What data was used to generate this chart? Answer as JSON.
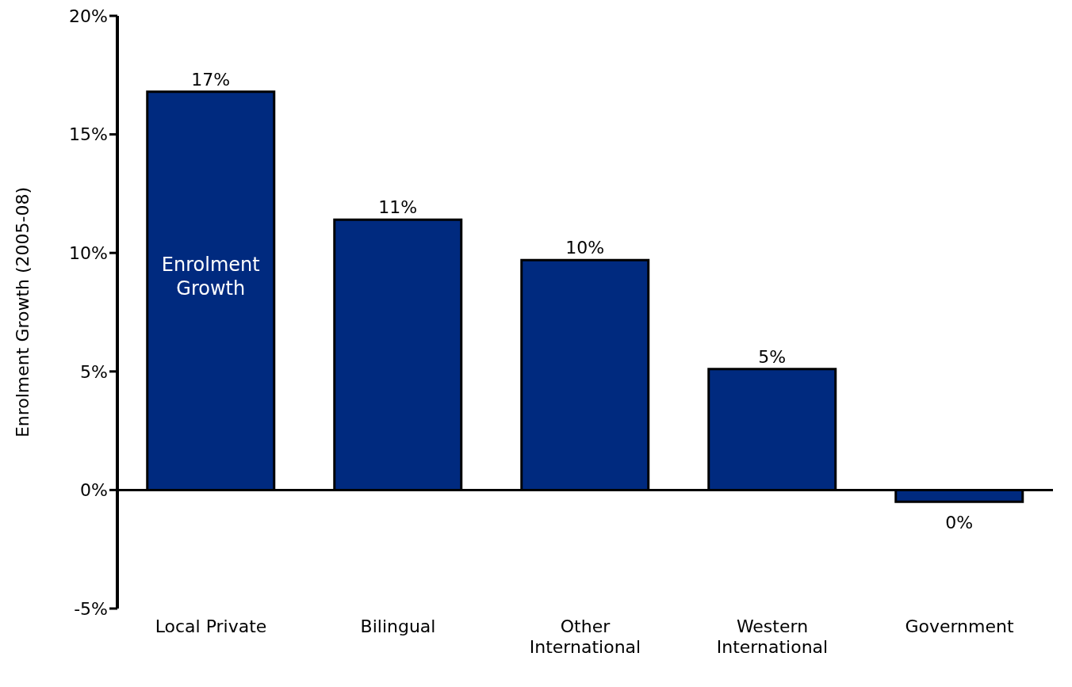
{
  "chart_data": {
    "type": "bar",
    "ylabel": "Enrolment Growth (2005-08)",
    "categories": [
      "Local Private",
      "Bilingual",
      "Other International",
      "Western International",
      "Government"
    ],
    "series": [
      {
        "name": "Enrolment Growth",
        "color": "#002a7f",
        "values": [
          16.8,
          11.4,
          9.7,
          5.1,
          -0.5
        ],
        "value_labels": [
          "17%",
          "11%",
          "10%",
          "5%",
          "0%"
        ]
      }
    ],
    "ylim": [
      -5,
      20
    ],
    "yticks": [
      {
        "value": -5,
        "label": "-5%"
      },
      {
        "value": 0,
        "label": "0%"
      },
      {
        "value": 5,
        "label": "5%"
      },
      {
        "value": 10,
        "label": "10%"
      },
      {
        "value": 15,
        "label": "15%"
      },
      {
        "value": 20,
        "label": "20%"
      }
    ],
    "legend": false
  }
}
